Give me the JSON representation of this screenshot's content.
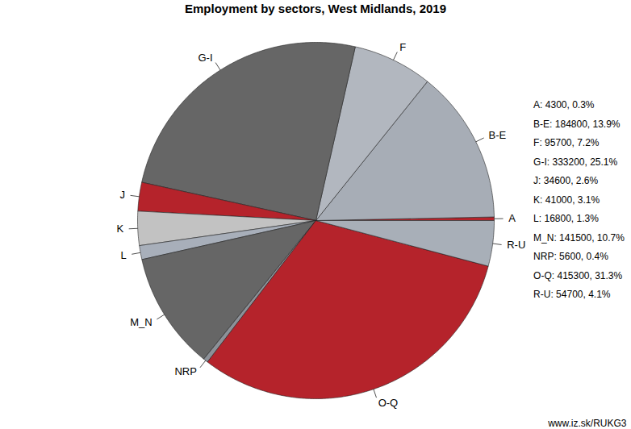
{
  "chart_data": {
    "type": "pie",
    "title": "Employment by sectors, West Midlands, 2019",
    "categories": [
      "A",
      "B-E",
      "F",
      "G-I",
      "J",
      "K",
      "L",
      "M_N",
      "NRP",
      "O-Q",
      "R-U"
    ],
    "values": [
      4300,
      184800,
      95700,
      333200,
      34600,
      41000,
      16800,
      141500,
      5600,
      415300,
      54700
    ],
    "value_labels": [
      "A: 4300, 0.3%",
      "B-E: 184800, 13.9%",
      "F: 95700, 7.2%",
      "G-I: 333200, 25.1%",
      "J: 34600, 2.6%",
      "K: 41000, 3.1%",
      "L: 16800, 1.3%",
      "M_N: 141500, 10.7%",
      "NRP: 5600, 0.4%",
      "O-Q: 415300, 31.3%",
      "R-U: 54700, 4.1%"
    ],
    "colors": [
      "#b5232b",
      "#a7adb6",
      "#b2b7bf",
      "#666666",
      "#b5232b",
      "#c2c2c2",
      "#a8afba",
      "#666666",
      "#8c9198",
      "#b5232b",
      "#a8afb8"
    ],
    "caption": "www.iz.sk/RUKG3"
  }
}
